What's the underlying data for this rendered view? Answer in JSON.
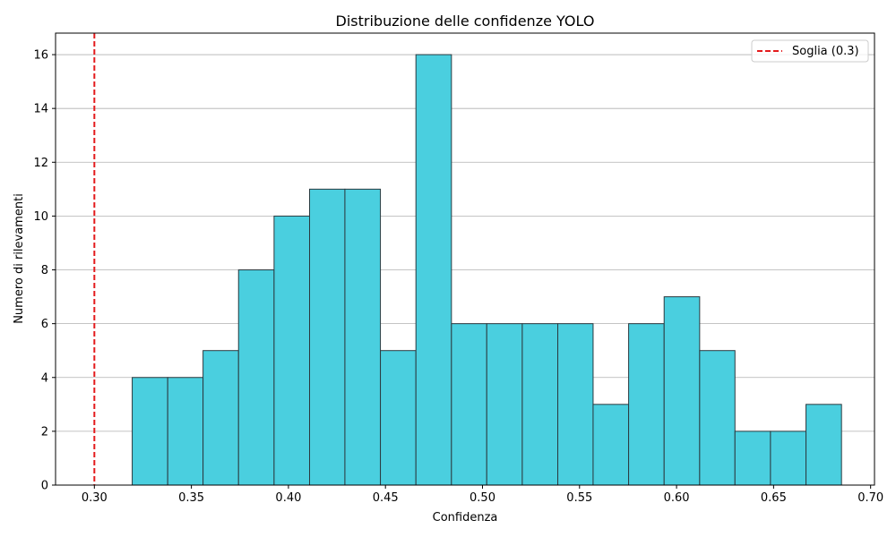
{
  "chart_data": {
    "type": "bar",
    "title": "Distribuzione delle confidenze YOLO",
    "xlabel": "Confidenza",
    "ylabel": "Numero di rilevamenti",
    "xlim": [
      0.28,
      0.702
    ],
    "ylim": [
      0,
      16.8
    ],
    "grid": "y",
    "bar_color": "#4acfdf",
    "bar_edge_color": "#2b3a40",
    "threshold": {
      "value": 0.3,
      "label": "Soglia (0.3)",
      "color": "#e31a1c",
      "style": "dashed"
    },
    "legend_position": "top-right",
    "xticks": [
      0.3,
      0.35,
      0.4,
      0.45,
      0.5,
      0.55,
      0.6,
      0.65,
      0.7
    ],
    "xtick_labels": [
      "0.30",
      "0.35",
      "0.40",
      "0.45",
      "0.50",
      "0.55",
      "0.60",
      "0.65",
      "0.70"
    ],
    "yticks": [
      0,
      2,
      4,
      6,
      8,
      10,
      12,
      14,
      16
    ],
    "ytick_labels": [
      "0",
      "2",
      "4",
      "6",
      "8",
      "10",
      "12",
      "14",
      "16"
    ],
    "bins": [
      {
        "start": 0.3195,
        "end": 0.3378,
        "count": 4
      },
      {
        "start": 0.3378,
        "end": 0.356,
        "count": 4
      },
      {
        "start": 0.356,
        "end": 0.3743,
        "count": 5
      },
      {
        "start": 0.3743,
        "end": 0.3926,
        "count": 8
      },
      {
        "start": 0.3926,
        "end": 0.4109,
        "count": 10
      },
      {
        "start": 0.4109,
        "end": 0.4291,
        "count": 11
      },
      {
        "start": 0.4291,
        "end": 0.4474,
        "count": 11
      },
      {
        "start": 0.4474,
        "end": 0.4657,
        "count": 5
      },
      {
        "start": 0.4657,
        "end": 0.484,
        "count": 16
      },
      {
        "start": 0.484,
        "end": 0.5022,
        "count": 6
      },
      {
        "start": 0.5022,
        "end": 0.5205,
        "count": 6
      },
      {
        "start": 0.5205,
        "end": 0.5388,
        "count": 6
      },
      {
        "start": 0.5388,
        "end": 0.557,
        "count": 6
      },
      {
        "start": 0.557,
        "end": 0.5753,
        "count": 3
      },
      {
        "start": 0.5753,
        "end": 0.5936,
        "count": 6
      },
      {
        "start": 0.5936,
        "end": 0.6119,
        "count": 7
      },
      {
        "start": 0.6119,
        "end": 0.6301,
        "count": 5
      },
      {
        "start": 0.6301,
        "end": 0.6484,
        "count": 2
      },
      {
        "start": 0.6484,
        "end": 0.6667,
        "count": 2
      },
      {
        "start": 0.6667,
        "end": 0.685,
        "count": 3
      }
    ]
  }
}
